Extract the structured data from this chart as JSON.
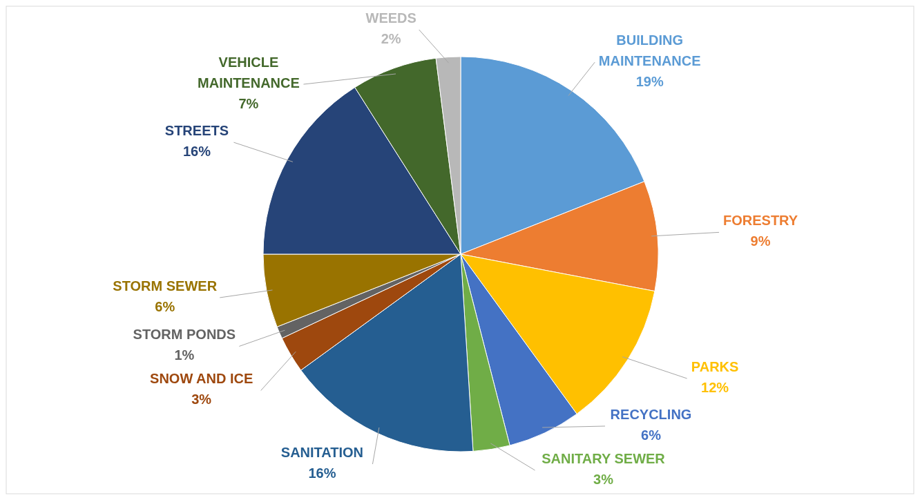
{
  "chart_data": {
    "type": "pie",
    "categories": [
      "BUILDING MAINTENANCE",
      "FORESTRY",
      "PARKS",
      "RECYCLING",
      "SANITARY SEWER",
      "SANITATION",
      "SNOW AND ICE",
      "STORM PONDS",
      "STORM SEWER",
      "STREETS",
      "VEHICLE MAINTENANCE",
      "WEEDS"
    ],
    "values": [
      19,
      9,
      12,
      6,
      3,
      16,
      3,
      1,
      6,
      16,
      7,
      2
    ],
    "colors": [
      "#5b9bd5",
      "#ed7d31",
      "#ffc000",
      "#4472c4",
      "#70ad47",
      "#255e91",
      "#9e480e",
      "#636363",
      "#997300",
      "#264478",
      "#43682b",
      "#b8b8b8"
    ],
    "value_labels": [
      "19%",
      "9%",
      "12%",
      "6%",
      "3%",
      "16%",
      "3%",
      "1%",
      "6%",
      "16%",
      "7%",
      "2%"
    ]
  }
}
